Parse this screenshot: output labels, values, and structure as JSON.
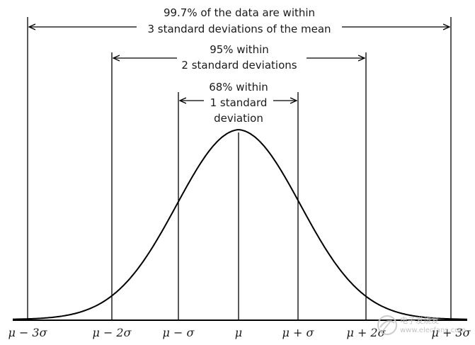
{
  "annotations": {
    "three_sd": {
      "line1": "99.7% of the data are within",
      "line2": "3 standard deviations of the mean"
    },
    "two_sd": {
      "line1": "95% within",
      "line2": "2 standard deviations"
    },
    "one_sd": {
      "line1": "68% within",
      "line2": "1 standard",
      "line3": "deviation"
    }
  },
  "axis_labels": {
    "m3": "μ − 3σ",
    "m2": "μ − 2σ",
    "m1": "μ − σ",
    "mu": "μ",
    "p1": "μ + σ",
    "p2": "μ + 2σ",
    "p3": "μ + 3σ"
  },
  "watermark": {
    "line1": "电子发烧友",
    "line2": "www.elecfans.com"
  },
  "colors": {
    "ink": "#000000",
    "text": "#1a1a1a",
    "watermark": "#b9b9b9"
  }
}
